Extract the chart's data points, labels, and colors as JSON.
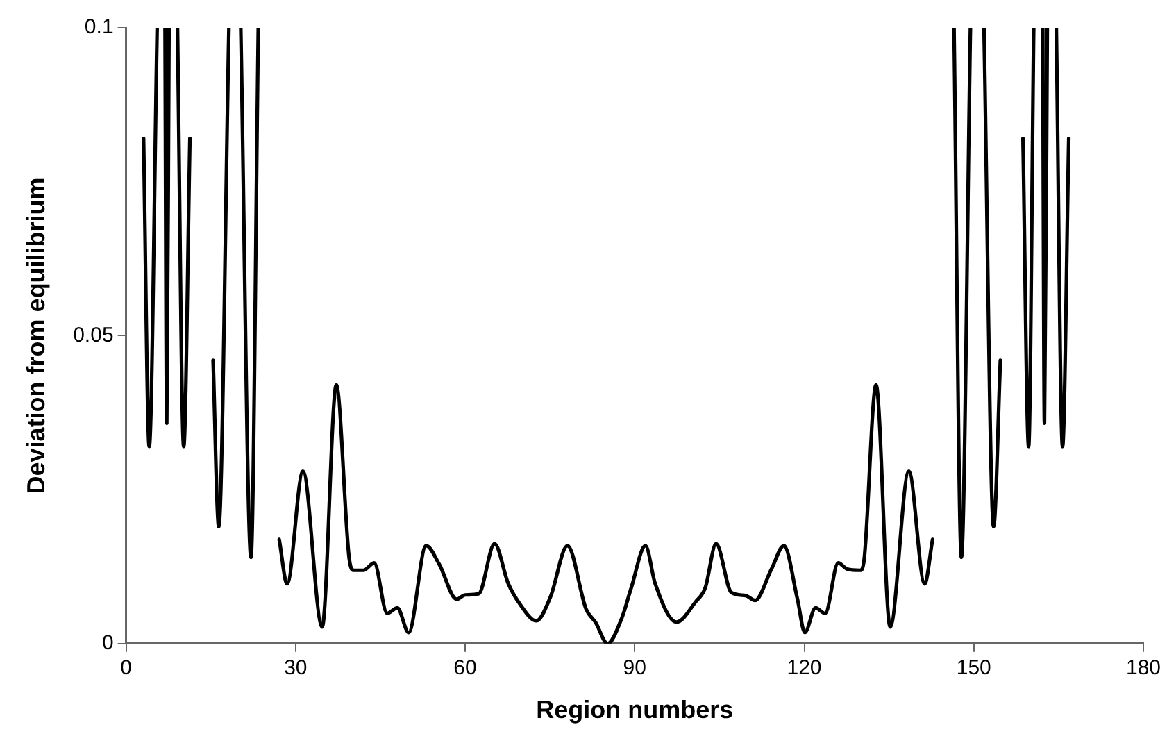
{
  "chart_data": {
    "type": "line",
    "xlabel": "Region numbers",
    "ylabel": "Deviation from equilibrium",
    "xlim": [
      0,
      180
    ],
    "xticks": [
      0,
      30,
      60,
      90,
      120,
      150,
      180
    ],
    "ylim": [
      0,
      0.1
    ],
    "yticks": [
      0,
      0.05,
      0.1
    ],
    "grid": false,
    "legend": false,
    "marker": "none",
    "line_style": "solid",
    "series": [
      {
        "color": "#000000",
        "x": [
          3.1,
          4.1,
          5.5,
          6.2,
          6.9,
          7.2,
          7.6,
          8.4,
          9.1,
          10.2,
          11.3,
          13.3,
          15.4,
          16.4,
          18.2,
          19.2,
          20.3,
          22.1,
          23.4,
          25.2,
          27.1,
          28.5,
          31.3,
          34.7,
          37.2,
          39.5,
          40.3,
          42.0,
          43.9,
          46.2,
          48.0,
          50.0,
          53.1,
          55.4,
          58.5,
          60.0,
          62.4,
          65.2,
          67.6,
          69.7,
          72.6,
          75.1,
          78.1,
          81.4,
          83.1,
          85.2,
          87.7,
          89.4,
          91.9,
          93.6,
          97.4,
          100.8,
          102.5,
          104.4,
          107.1,
          109.6,
          111.3,
          114.2,
          116.4,
          118.8,
          120.1,
          122.0,
          123.7,
          126.0,
          127.6,
          129.9,
          130.6,
          132.7,
          135.2,
          138.5,
          141.3,
          142.7,
          144.6,
          146.5,
          147.8,
          149.4,
          150.6,
          151.8,
          153.5,
          154.7,
          156.7,
          158.7,
          159.7,
          160.6,
          161.4,
          162.2,
          162.5,
          163.0,
          163.8,
          164.6,
          165.7,
          166.8
        ],
        "values": [
          0.082,
          0.032,
          0.1,
          null,
          0.1,
          0.0358,
          0.1,
          null,
          0.1,
          0.032,
          0.082,
          null,
          0.046,
          0.019,
          0.1,
          null,
          0.1,
          0.014,
          0.1,
          null,
          0.0169,
          0.0097,
          0.028,
          0.0027,
          0.042,
          0.0137,
          0.0119,
          0.0119,
          0.0131,
          0.0049,
          0.0058,
          0.0018,
          0.0159,
          0.0129,
          0.0072,
          0.0079,
          0.0081,
          0.0162,
          0.0098,
          0.0064,
          0.0037,
          0.0076,
          0.0159,
          0.0056,
          0.0034,
          0,
          0.0041,
          0.0091,
          0.0159,
          0.0098,
          0.0035,
          0.0068,
          0.0091,
          0.0162,
          0.0083,
          0.0078,
          0.007,
          0.0121,
          0.0159,
          0.0072,
          0.0018,
          0.0058,
          0.0049,
          0.0131,
          0.0121,
          0.0119,
          0.0137,
          0.042,
          0.0027,
          0.028,
          0.0097,
          0.0169,
          null,
          0.1,
          0.014,
          0.1,
          null,
          0.1,
          0.019,
          0.046,
          null,
          0.082,
          0.032,
          0.1,
          null,
          0.1,
          0.0358,
          0.1,
          null,
          0.1,
          0.032,
          0.082
        ]
      }
    ]
  }
}
